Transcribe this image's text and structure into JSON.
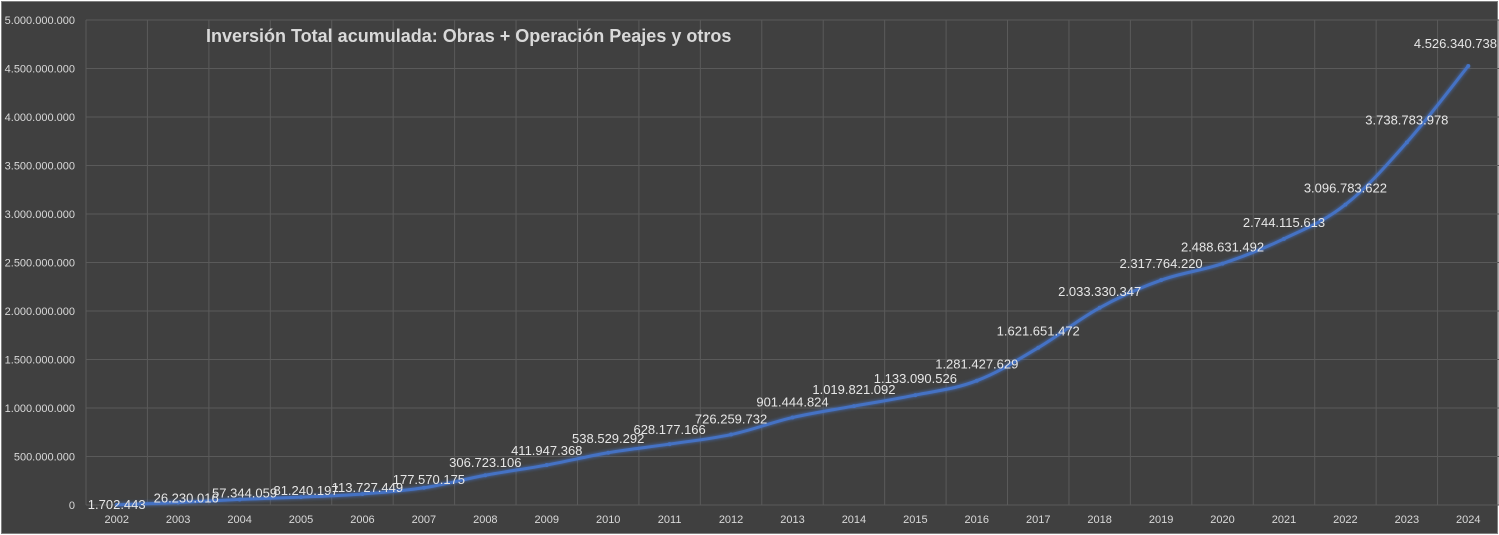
{
  "chart_data": {
    "type": "line",
    "title": "Inversión Total acumulada: Obras + Operación Peajes y otros",
    "categories": [
      "2002",
      "2003",
      "2004",
      "2005",
      "2006",
      "2007",
      "2008",
      "2009",
      "2010",
      "2011",
      "2012",
      "2013",
      "2014",
      "2015",
      "2016",
      "2017",
      "2018",
      "2019",
      "2020",
      "2021",
      "2022",
      "2023",
      "2024"
    ],
    "values": [
      1702443,
      26230016,
      57344059,
      81240197,
      113727449,
      177570175,
      306723106,
      411947368,
      538529292,
      628177166,
      726259732,
      901444824,
      1019821092,
      1133090526,
      1281427629,
      1621651472,
      2033330347,
      2317764220,
      2488631492,
      2744115613,
      3096783622,
      3738783978,
      4526340738
    ],
    "data_labels": [
      "1.702.443",
      "26.230.016",
      "57.344.059",
      "81.240.197",
      "113.727.449",
      "177.570.175",
      "306.723.106",
      "411.947.368",
      "538.529.292",
      "628.177.166",
      "726.259.732",
      "901.444.824",
      "1.019.821.092",
      "1.133.090.526",
      "1.281.427.629",
      "1.621.651.472",
      "2.033.330.347",
      "2.317.764.220",
      "2.488.631.492",
      "2.744.115.613",
      "3.096.783.622",
      "3.738.783.978",
      "4.526.340.738"
    ],
    "ylim": [
      0,
      5000000000
    ],
    "yticks": [
      0,
      500000000,
      1000000000,
      1500000000,
      2000000000,
      2500000000,
      3000000000,
      3500000000,
      4000000000,
      4500000000,
      5000000000
    ],
    "ytick_labels": [
      "0",
      "500.000.000",
      "1.000.000.000",
      "1.500.000.000",
      "2.000.000.000",
      "2.500.000.000",
      "3.000.000.000",
      "3.500.000.000",
      "4.000.000.000",
      "4.500.000.000",
      "5.000.000.000"
    ],
    "xlabel": "",
    "ylabel": "",
    "grid": true,
    "legend": "none"
  },
  "colors": {
    "background": "#404040",
    "gridline": "#5a5a5a",
    "line": "#4472c4",
    "text": "#d9d9d9"
  }
}
